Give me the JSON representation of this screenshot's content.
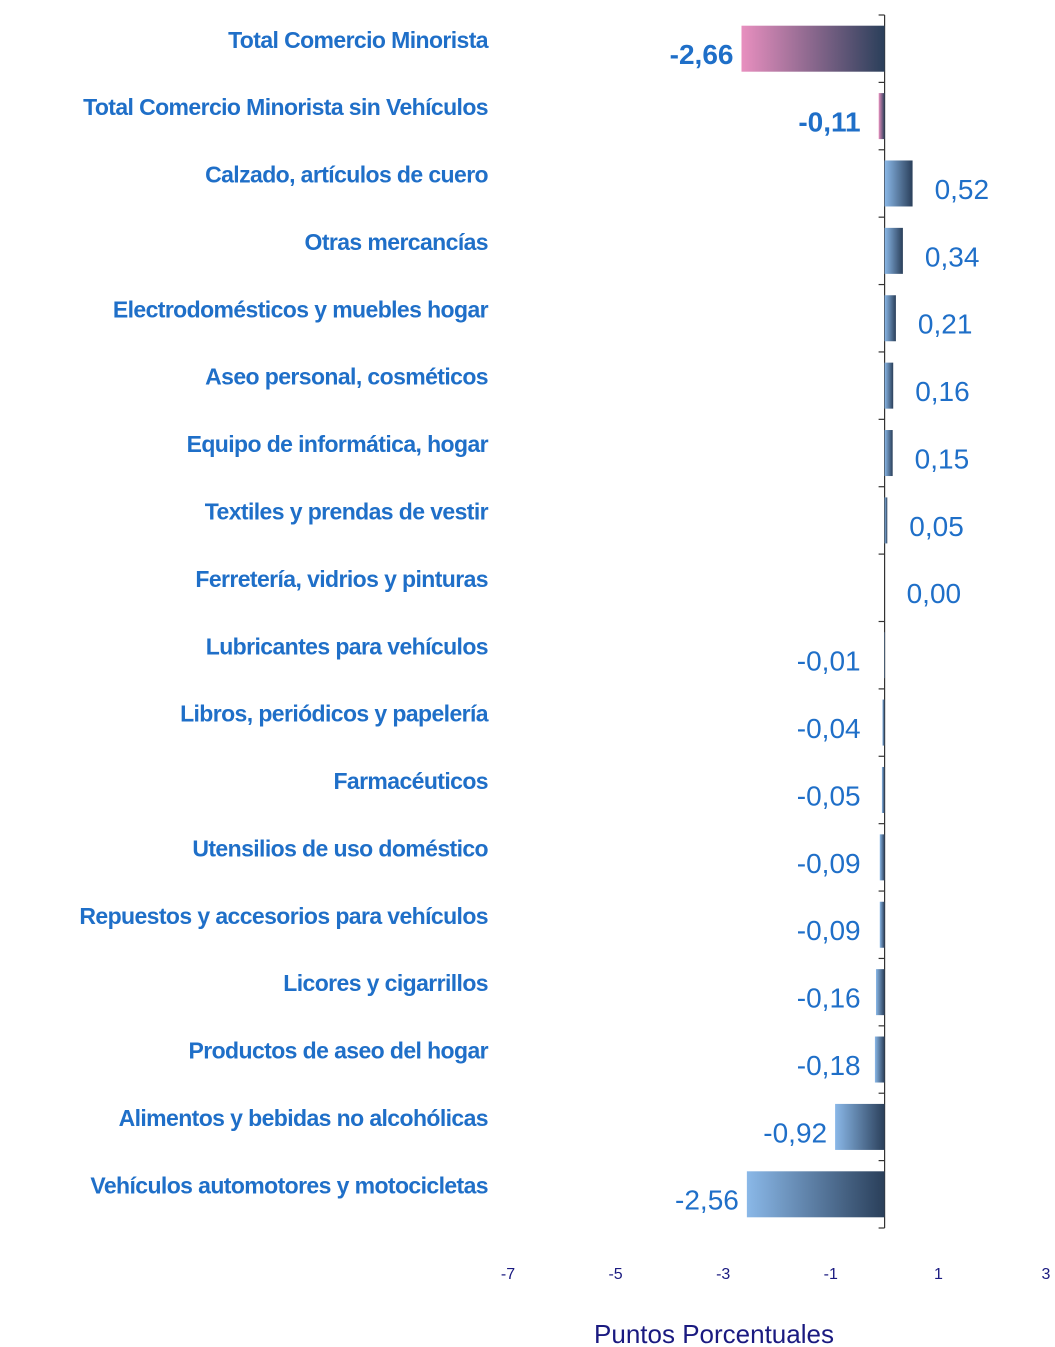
{
  "chart_data": {
    "type": "hbar",
    "x_label": "Puntos Porcentuales",
    "categories": [
      "Total Comercio Minorista",
      "Total Comercio Minorista sin Vehículos",
      "Calzado, artículos de cuero",
      "Otras mercancías",
      "Electrodomésticos y muebles hogar",
      "Aseo personal, cosméticos",
      "Equipo de informática, hogar",
      "Textiles y prendas de vestir",
      "Ferretería, vidrios y pinturas",
      "Lubricantes para vehículos",
      "Libros, periódicos y papelería",
      "Farmacéuticos",
      "Utensilios de uso doméstico",
      "Repuestos y accesorios para vehículos",
      "Licores y cigarrillos",
      "Productos de aseo del hogar",
      "Alimentos y bebidas no alcohólicas",
      "Vehículos automotores y motocicletas"
    ],
    "values": [
      -2.66,
      -0.11,
      0.52,
      0.34,
      0.21,
      0.16,
      0.15,
      0.05,
      0.0,
      -0.01,
      -0.04,
      -0.05,
      -0.09,
      -0.09,
      -0.16,
      -0.18,
      -0.92,
      -2.56
    ],
    "value_labels": [
      "-2,66",
      "-0,11",
      "0,52",
      "0,34",
      "0,21",
      "0,16",
      "0,15",
      "0,05",
      "0,00",
      "-0,01",
      "-0,04",
      "-0,05",
      "-0,09",
      "-0,09",
      "-0,16",
      "-0,18",
      "-0,92",
      "-2,56"
    ],
    "colors": [
      "#e88fbf",
      "#e88fbf",
      "#8ab8e8",
      "#8ab8e8",
      "#8ab8e8",
      "#8ab8e8",
      "#8ab8e8",
      "#8ab8e8",
      "#8ab8e8",
      "#8ab8e8",
      "#8ab8e8",
      "#8ab8e8",
      "#8ab8e8",
      "#8ab8e8",
      "#8ab8e8",
      "#8ab8e8",
      "#8ab8e8",
      "#8ab8e8"
    ],
    "xlim": [
      -7,
      3
    ],
    "xticks": [
      -7,
      -5,
      -3,
      -1,
      1,
      3
    ]
  }
}
